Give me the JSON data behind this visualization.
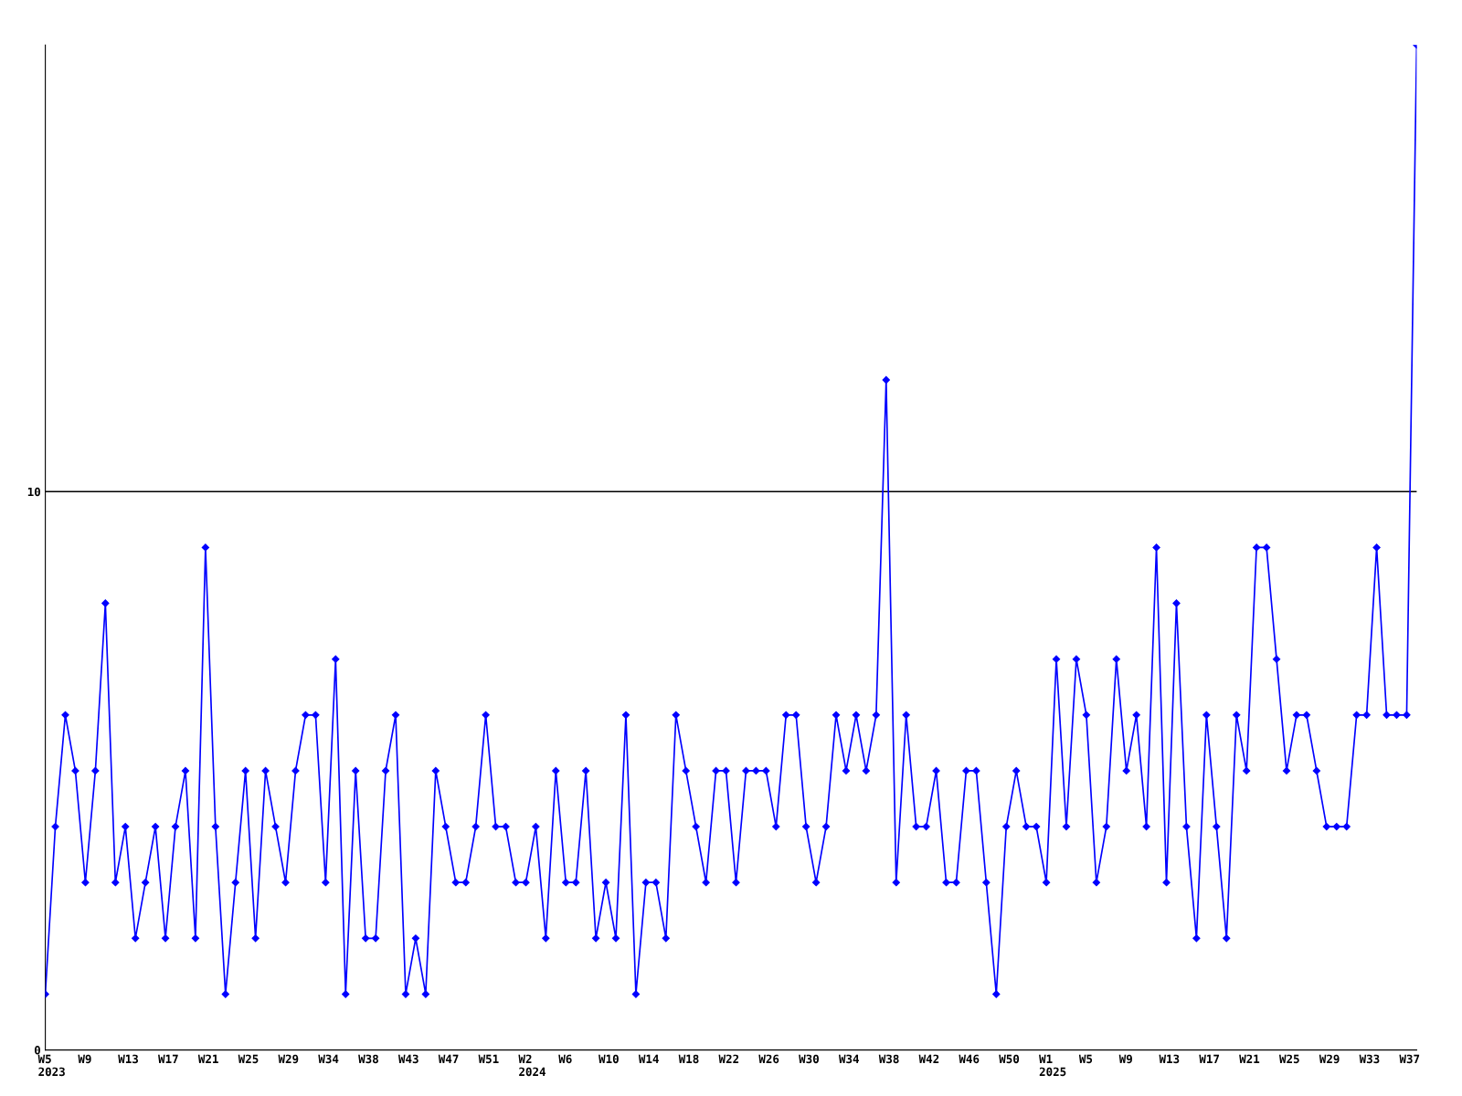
{
  "chart_data": {
    "type": "line",
    "categories": [
      "W5\n2023",
      null,
      null,
      null,
      "W9",
      null,
      null,
      null,
      "W13",
      null,
      null,
      null,
      "W17",
      null,
      null,
      null,
      "W21",
      null,
      null,
      null,
      "W25",
      null,
      null,
      null,
      "W29",
      null,
      null,
      null,
      "W34",
      null,
      null,
      null,
      "W38",
      null,
      null,
      null,
      "W43",
      null,
      null,
      null,
      "W47",
      null,
      null,
      null,
      "W51",
      null,
      null,
      null,
      "W2\n2024",
      null,
      null,
      null,
      "W6",
      null,
      null,
      null,
      "W10",
      null,
      null,
      null,
      "W14",
      null,
      null,
      null,
      "W18",
      null,
      null,
      null,
      "W22",
      null,
      null,
      null,
      "W26",
      null,
      null,
      null,
      "W30",
      null,
      null,
      null,
      "W34",
      null,
      null,
      null,
      "W38",
      null,
      null,
      null,
      "W42",
      null,
      null,
      null,
      "W46",
      null,
      null,
      null,
      "W50",
      null,
      null,
      null,
      "W1\n2025",
      null,
      null,
      null,
      "W5",
      null,
      null,
      null,
      "W9",
      null,
      null,
      null,
      "W13",
      null,
      null,
      null,
      "W17",
      null,
      null,
      null,
      "W21",
      null,
      null,
      null,
      "W25",
      null,
      null,
      null,
      "W29",
      null,
      null,
      null,
      "W33",
      null,
      null,
      null,
      "W37",
      null
    ],
    "series": [
      {
        "color": "#0000ff",
        "values": [
          1,
          4,
          6,
          5,
          3,
          5,
          8,
          3,
          4,
          2,
          3,
          4,
          2,
          4,
          5,
          2,
          9,
          4,
          1,
          3,
          5,
          2,
          5,
          4,
          3,
          5,
          6,
          6,
          3,
          7,
          1,
          5,
          2,
          2,
          5,
          6,
          1,
          2,
          1,
          5,
          4,
          3,
          3,
          4,
          6,
          4,
          4,
          3,
          3,
          4,
          2,
          5,
          3,
          3,
          5,
          2,
          3,
          2,
          6,
          1,
          3,
          3,
          2,
          6,
          5,
          4,
          3,
          5,
          5,
          3,
          5,
          5,
          5,
          4,
          6,
          6,
          4,
          3,
          4,
          6,
          5,
          6,
          5,
          6,
          12,
          3,
          6,
          4,
          4,
          5,
          3,
          3,
          5,
          5,
          3,
          1,
          4,
          5,
          4,
          4,
          3,
          7,
          4,
          7,
          6,
          3,
          4,
          7,
          5,
          6,
          4,
          9,
          3,
          8,
          4,
          2,
          6,
          4,
          2,
          6,
          5,
          9,
          9,
          7,
          5,
          6,
          6,
          5,
          4,
          4,
          4,
          6,
          6,
          9,
          6,
          6,
          6,
          18
        ]
      }
    ],
    "ylim": [
      0,
      18
    ],
    "yticks": [
      0,
      10
    ],
    "grid": "y",
    "marker": "diamond",
    "line_style": "solid",
    "legend": false
  }
}
